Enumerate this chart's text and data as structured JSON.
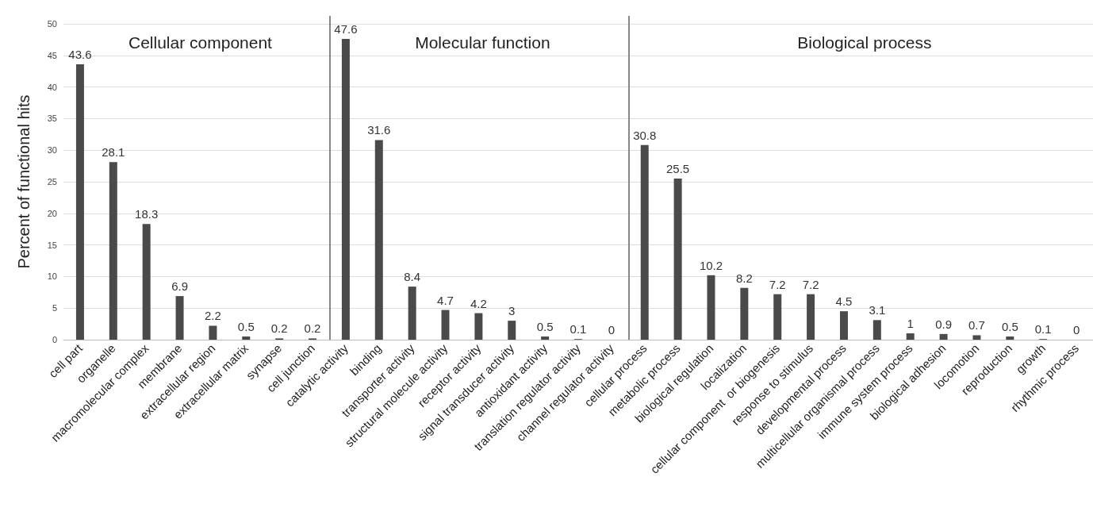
{
  "chart_data": [
    {
      "type": "bar",
      "title": "Cellular component",
      "ylabel": "Percent of functional hits",
      "categories": [
        "cell part",
        "organelle",
        "macromolecular complex",
        "membrane",
        "extracellular region",
        "extracellular matrix",
        "synapse",
        "cell junction"
      ],
      "values": [
        43.6,
        28.1,
        18.3,
        6.9,
        2.2,
        0.5,
        0.2,
        0.2
      ],
      "color": "#4a4a4a",
      "ylim": [
        0,
        50
      ],
      "yticks": [
        0,
        5,
        10,
        15,
        20,
        25,
        30,
        35,
        40,
        45,
        50
      ],
      "grid": "y",
      "data_labels": true
    },
    {
      "type": "bar",
      "title": "Molecular function",
      "categories": [
        "catalytic activity",
        "binding",
        "transporter activity",
        "structural molecule activity",
        "receptor activity",
        "signal transducer activity",
        "antioxidant activity",
        "translation regulator activity",
        "channel regulator activity"
      ],
      "values": [
        47.6,
        31.6,
        8.4,
        4.7,
        4.2,
        3,
        0.5,
        0.1,
        0
      ],
      "color": "#4a4a4a",
      "ylim": [
        0,
        50
      ],
      "yticks": [
        0,
        5,
        10,
        15,
        20,
        25,
        30,
        35,
        40,
        45,
        50
      ],
      "grid": "y",
      "data_labels": true,
      "tick_labels": "x"
    },
    {
      "type": "bar",
      "title": "Biological process",
      "categories": [
        "cellular process",
        "metabolic process",
        "biological regulation",
        "localization",
        "cellular component  or biogenesis",
        "response to stimulus",
        "developmental process",
        "multicellular organismal process",
        "immune system process",
        "biological adhesion",
        "locomotion",
        "reproduction",
        "growth",
        "rhythmic process"
      ],
      "values": [
        30.8,
        25.5,
        10.2,
        8.2,
        7.2,
        7.2,
        4.5,
        3.1,
        1,
        0.9,
        0.7,
        0.5,
        0.1,
        0
      ],
      "color": "#4a4a4a",
      "ylim": [
        0,
        50
      ],
      "yticks": [
        0,
        5,
        10,
        15,
        20,
        25,
        30,
        35,
        40,
        45,
        50
      ],
      "grid": "y",
      "data_labels": true,
      "tick_labels": "x"
    }
  ]
}
